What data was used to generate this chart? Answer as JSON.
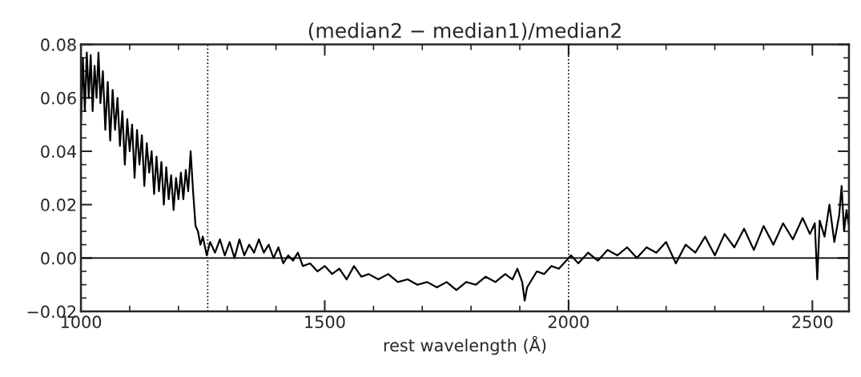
{
  "chart_data": {
    "type": "line",
    "title": "(median2 − median1)/median2",
    "xlabel": "rest wavelength (Å)",
    "xlim": [
      1000,
      2575
    ],
    "xticks": [
      1000,
      1500,
      2000,
      2500
    ],
    "ylim": [
      -0.02,
      0.08
    ],
    "yticks": [
      {
        "value": -0.02,
        "label": "−0.02"
      },
      {
        "value": 0.0,
        "label": "0.00"
      },
      {
        "value": 0.02,
        "label": "0.02"
      },
      {
        "value": 0.04,
        "label": "0.04"
      },
      {
        "value": 0.06,
        "label": "0.06"
      },
      {
        "value": 0.08,
        "label": "0.08"
      }
    ],
    "grid": false,
    "legend": false,
    "marker": "none",
    "line_style": "solid",
    "ref_lines": [
      {
        "axis": "y",
        "value": 0,
        "color": "#000000",
        "line_style": "solid"
      },
      {
        "axis": "x",
        "value": 1260,
        "color": "#000000",
        "line_style": "dotted"
      },
      {
        "axis": "x",
        "value": 2000,
        "color": "#000000",
        "line_style": "dotted"
      }
    ],
    "series": [
      {
        "color": "#000000",
        "x": [
          1000,
          1004,
          1008,
          1012,
          1016,
          1020,
          1024,
          1028,
          1032,
          1036,
          1040,
          1045,
          1050,
          1055,
          1060,
          1065,
          1070,
          1075,
          1080,
          1085,
          1090,
          1095,
          1100,
          1105,
          1110,
          1115,
          1120,
          1125,
          1130,
          1135,
          1140,
          1145,
          1150,
          1155,
          1160,
          1165,
          1170,
          1175,
          1180,
          1185,
          1190,
          1195,
          1200,
          1205,
          1210,
          1215,
          1220,
          1225,
          1230,
          1235,
          1240,
          1245,
          1250,
          1258,
          1265,
          1275,
          1285,
          1295,
          1305,
          1315,
          1325,
          1335,
          1345,
          1355,
          1365,
          1375,
          1385,
          1395,
          1405,
          1415,
          1425,
          1435,
          1445,
          1455,
          1470,
          1485,
          1500,
          1515,
          1530,
          1545,
          1560,
          1575,
          1590,
          1610,
          1630,
          1650,
          1670,
          1690,
          1710,
          1730,
          1750,
          1770,
          1790,
          1810,
          1830,
          1850,
          1870,
          1885,
          1895,
          1905,
          1910,
          1915,
          1925,
          1935,
          1950,
          1965,
          1980,
          1995,
          2005,
          2020,
          2040,
          2060,
          2080,
          2100,
          2120,
          2140,
          2160,
          2180,
          2200,
          2220,
          2240,
          2260,
          2280,
          2300,
          2320,
          2340,
          2360,
          2380,
          2400,
          2420,
          2440,
          2460,
          2480,
          2495,
          2505,
          2510,
          2515,
          2525,
          2535,
          2545,
          2555,
          2560,
          2565,
          2570,
          2575
        ],
        "values": [
          0.05,
          0.075,
          0.055,
          0.077,
          0.06,
          0.076,
          0.055,
          0.072,
          0.06,
          0.077,
          0.058,
          0.07,
          0.048,
          0.066,
          0.044,
          0.063,
          0.048,
          0.06,
          0.042,
          0.055,
          0.035,
          0.052,
          0.04,
          0.05,
          0.03,
          0.048,
          0.035,
          0.046,
          0.027,
          0.043,
          0.032,
          0.04,
          0.024,
          0.038,
          0.025,
          0.036,
          0.02,
          0.034,
          0.022,
          0.031,
          0.018,
          0.03,
          0.022,
          0.032,
          0.022,
          0.033,
          0.025,
          0.04,
          0.025,
          0.012,
          0.01,
          0.005,
          0.008,
          0.001,
          0.006,
          0.002,
          0.007,
          0.001,
          0.006,
          0.0,
          0.007,
          0.001,
          0.005,
          0.002,
          0.007,
          0.002,
          0.005,
          0.0,
          0.004,
          -0.002,
          0.001,
          -0.001,
          0.002,
          -0.003,
          -0.002,
          -0.005,
          -0.003,
          -0.006,
          -0.004,
          -0.008,
          -0.003,
          -0.007,
          -0.006,
          -0.008,
          -0.006,
          -0.009,
          -0.008,
          -0.01,
          -0.009,
          -0.011,
          -0.009,
          -0.012,
          -0.009,
          -0.01,
          -0.007,
          -0.009,
          -0.006,
          -0.008,
          -0.004,
          -0.009,
          -0.016,
          -0.011,
          -0.008,
          -0.005,
          -0.006,
          -0.003,
          -0.004,
          -0.001,
          0.001,
          -0.002,
          0.002,
          -0.001,
          0.003,
          0.001,
          0.004,
          0.0,
          0.004,
          0.002,
          0.006,
          -0.002,
          0.005,
          0.002,
          0.008,
          0.001,
          0.009,
          0.004,
          0.011,
          0.003,
          0.012,
          0.005,
          0.013,
          0.007,
          0.015,
          0.009,
          0.013,
          -0.008,
          0.014,
          0.008,
          0.02,
          0.006,
          0.016,
          0.027,
          0.01,
          0.018,
          0.012
        ]
      }
    ]
  }
}
